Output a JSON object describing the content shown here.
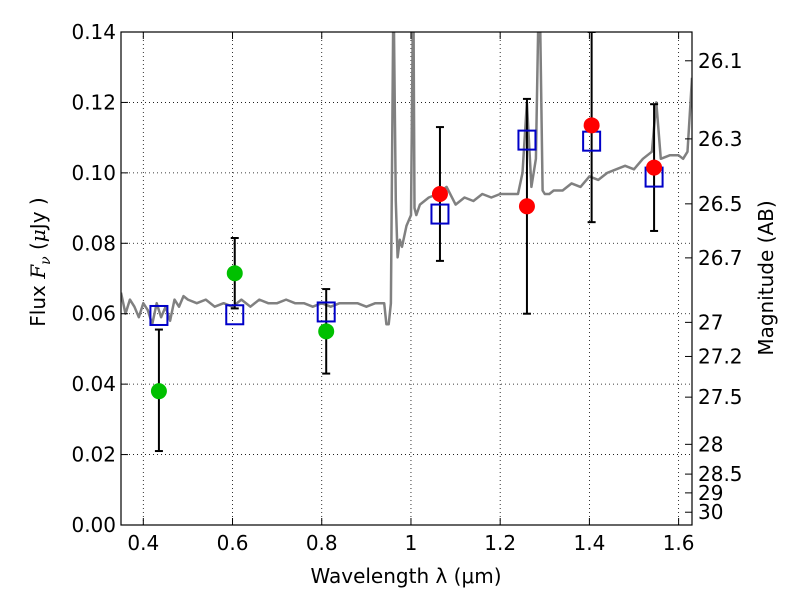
{
  "chart_data": {
    "type": "scatter",
    "xlabel": "Wavelength  λ (μm)",
    "ylabel": {
      "prefix": "Flux  ",
      "symbol_main": "F",
      "symbol_sub": "ν",
      "open_paren": "  (",
      "mu": "μ",
      "unit": "Jy )"
    },
    "y2label": "Magnitude (AB)",
    "xlim": [
      0.35,
      1.63
    ],
    "ylim": [
      0.0,
      0.14
    ],
    "grid": true,
    "x_ticks": [
      0.4,
      0.6,
      0.8,
      1.0,
      1.2,
      1.4,
      1.6
    ],
    "x_tick_labels": [
      "0.4",
      "0.6",
      "0.8",
      "1",
      "1.2",
      "1.4",
      "1.6"
    ],
    "y_ticks": [
      0.0,
      0.02,
      0.04,
      0.06,
      0.08,
      0.1,
      0.12,
      0.14
    ],
    "y_tick_labels": [
      "0.00",
      "0.02",
      "0.04",
      "0.06",
      "0.08",
      "0.10",
      "0.12",
      "0.14"
    ],
    "magnitude_ticks": [
      26.1,
      26.3,
      26.5,
      26.7,
      27,
      27.2,
      27.5,
      28,
      28.5,
      29,
      30
    ],
    "magnitude_tick_labels": [
      "26.1",
      "26.3",
      "26.5",
      "26.7",
      "27",
      "27.2",
      "27.5",
      "28",
      "28.5",
      "29",
      "30"
    ],
    "model_spectrum": {
      "name": "model SED",
      "color": "#808080",
      "x": [
        0.35,
        0.36,
        0.37,
        0.38,
        0.39,
        0.4,
        0.41,
        0.42,
        0.43,
        0.44,
        0.45,
        0.46,
        0.47,
        0.48,
        0.49,
        0.5,
        0.52,
        0.54,
        0.56,
        0.58,
        0.6,
        0.62,
        0.64,
        0.66,
        0.68,
        0.7,
        0.72,
        0.74,
        0.76,
        0.78,
        0.8,
        0.82,
        0.84,
        0.86,
        0.88,
        0.9,
        0.92,
        0.94,
        0.945,
        0.95,
        0.955,
        0.96,
        0.962,
        0.966,
        0.97,
        0.975,
        0.98,
        0.99,
        1.0,
        1.004,
        1.006,
        1.008,
        1.012,
        1.02,
        1.04,
        1.06,
        1.08,
        1.1,
        1.12,
        1.14,
        1.16,
        1.18,
        1.2,
        1.22,
        1.24,
        1.25,
        1.26,
        1.27,
        1.28,
        1.285,
        1.29,
        1.295,
        1.3,
        1.31,
        1.32,
        1.34,
        1.36,
        1.38,
        1.4,
        1.42,
        1.44,
        1.46,
        1.48,
        1.5,
        1.52,
        1.54,
        1.55,
        1.56,
        1.58,
        1.6,
        1.61,
        1.62,
        1.63
      ],
      "y": [
        0.066,
        0.06,
        0.064,
        0.062,
        0.059,
        0.063,
        0.061,
        0.057,
        0.063,
        0.059,
        0.062,
        0.058,
        0.064,
        0.062,
        0.065,
        0.064,
        0.063,
        0.064,
        0.062,
        0.063,
        0.062,
        0.064,
        0.062,
        0.064,
        0.063,
        0.063,
        0.064,
        0.063,
        0.063,
        0.062,
        0.063,
        0.062,
        0.063,
        0.063,
        0.063,
        0.062,
        0.063,
        0.063,
        0.057,
        0.057,
        0.063,
        0.14,
        0.14,
        0.092,
        0.076,
        0.081,
        0.079,
        0.085,
        0.088,
        0.14,
        0.14,
        0.09,
        0.088,
        0.091,
        0.093,
        0.094,
        0.096,
        0.091,
        0.093,
        0.092,
        0.094,
        0.093,
        0.094,
        0.094,
        0.094,
        0.1,
        0.12,
        0.096,
        0.104,
        0.14,
        0.14,
        0.095,
        0.094,
        0.094,
        0.095,
        0.095,
        0.097,
        0.096,
        0.099,
        0.098,
        0.1,
        0.101,
        0.102,
        0.101,
        0.104,
        0.106,
        0.12,
        0.104,
        0.105,
        0.105,
        0.104,
        0.106,
        0.127
      ]
    },
    "series": [
      {
        "name": "green filled circles",
        "marker": "circle",
        "color": "#00c000",
        "x": [
          0.435,
          0.605,
          0.81
        ],
        "y": [
          0.038,
          0.0715,
          0.055
        ]
      },
      {
        "name": "red filled circles",
        "marker": "circle",
        "color": "#ff0000",
        "x": [
          1.065,
          1.26,
          1.405,
          1.545
        ],
        "y": [
          0.094,
          0.0905,
          0.1135,
          0.1015
        ]
      },
      {
        "name": "blue open squares",
        "marker": "square-open",
        "color": "#0000c8",
        "x": [
          0.435,
          0.605,
          0.81,
          1.065,
          1.26,
          1.405,
          1.545
        ],
        "y": [
          0.0595,
          0.0597,
          0.0605,
          0.0883,
          0.1093,
          0.109,
          0.0988
        ]
      }
    ],
    "error_bars": {
      "color": "#000000",
      "x": [
        0.435,
        0.605,
        0.81,
        1.065,
        1.26,
        1.405,
        1.545
      ],
      "low": [
        0.021,
        0.0615,
        0.043,
        0.075,
        0.06,
        0.086,
        0.0835
      ],
      "high": [
        0.0555,
        0.0815,
        0.067,
        0.113,
        0.121,
        0.14,
        0.1195
      ]
    }
  }
}
